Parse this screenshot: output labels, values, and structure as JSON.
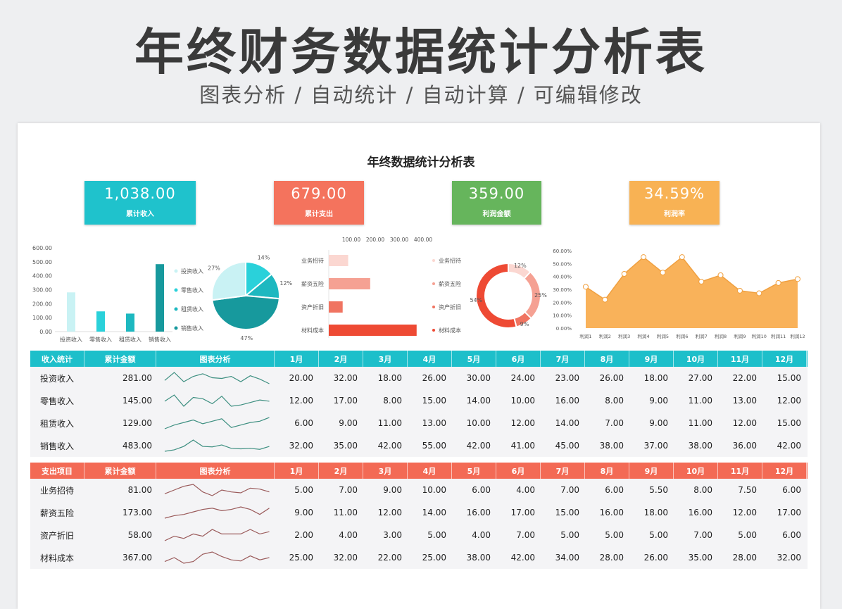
{
  "header": {
    "title": "年终财务数据统计分析表",
    "subtitle": "图表分析 / 自动统计 / 自动计算 / 可编辑修改"
  },
  "sheet_title": "年终数据统计分析表",
  "kpis": [
    {
      "value": "1,038.00",
      "label": "累计收入",
      "color": "#1fc2cc"
    },
    {
      "value": "679.00",
      "label": "累计支出",
      "color": "#f4735d"
    },
    {
      "value": "359.00",
      "label": "利润金额",
      "color": "#66b55c"
    },
    {
      "value": "34.59%",
      "label": "利润率",
      "color": "#f8b254"
    }
  ],
  "colors": {
    "income_header": "#1dbfca",
    "expense_header": "#f36a55",
    "line_spark_income": "#3d8f80",
    "line_spark_expense": "#9a5a5a"
  },
  "chart_data": [
    {
      "type": "bar",
      "categories": [
        "投资收入",
        "零售收入",
        "租赁收入",
        "销售收入"
      ],
      "values": [
        281,
        145,
        129,
        483
      ],
      "ylim": [
        0,
        600
      ],
      "yticks": [
        "0.00",
        "100.00",
        "200.00",
        "300.00",
        "400.00",
        "500.00",
        "600.00"
      ],
      "colors": [
        "#c9f2f4",
        "#2ad1da",
        "#1db8c0",
        "#17999d"
      ]
    },
    {
      "type": "pie",
      "categories": [
        "零售收入",
        "租赁收入",
        "销售收入",
        "投资收入"
      ],
      "values": [
        145,
        129,
        483,
        281
      ],
      "labels": [
        "14%",
        "12%",
        "47%",
        "27%"
      ],
      "colors": [
        "#2ad1da",
        "#1db8c0",
        "#17999d",
        "#c9f2f4"
      ],
      "legend": [
        "投资收入",
        "零售收入",
        "租赁收入",
        "销售收入"
      ],
      "legend_colors": [
        "#c9f2f4",
        "#2ad1da",
        "#1db8c0",
        "#17999d"
      ]
    },
    {
      "type": "bar",
      "orientation": "horizontal",
      "categories": [
        "业务招待",
        "薪资五险",
        "资产折旧",
        "材料成本"
      ],
      "values": [
        81,
        173,
        58,
        367
      ],
      "xticks": [
        "100.00",
        "200.00",
        "300.00",
        "400.00"
      ],
      "colors": [
        "#fbd7d1",
        "#f5a193",
        "#f07461",
        "#ee4a34"
      ]
    },
    {
      "type": "pie",
      "donut": true,
      "categories": [
        "业务招待",
        "薪资五险",
        "资产折旧",
        "材料成本"
      ],
      "values": [
        81,
        173,
        58,
        367
      ],
      "labels": [
        "12%",
        "25%",
        "9%",
        "54%"
      ],
      "colors": [
        "#fbd7d1",
        "#f5a193",
        "#f07461",
        "#ee4a34"
      ]
    },
    {
      "type": "area",
      "categories": [
        "利润1",
        "利润2",
        "利润3",
        "利润4",
        "利润5",
        "利润6",
        "利润7",
        "利润8",
        "利润9",
        "利润10",
        "利润11",
        "利润12"
      ],
      "values": [
        32,
        22,
        42,
        55,
        43,
        55,
        36,
        41,
        29,
        27,
        35,
        38
      ],
      "ylim": [
        0,
        60
      ],
      "yticks": [
        "0.00%",
        "10.00%",
        "20.00%",
        "30.00%",
        "40.00%",
        "50.00%",
        "60.00%"
      ],
      "color": "#f9b25a"
    }
  ],
  "income": {
    "headers": [
      "收入统计",
      "累计金额",
      "图表分析",
      "1月",
      "2月",
      "3月",
      "4月",
      "5月",
      "6月",
      "7月",
      "8月",
      "9月",
      "10月",
      "11月",
      "12月"
    ],
    "rows": [
      {
        "name": "投资收入",
        "total": "281.00",
        "months": [
          "20.00",
          "32.00",
          "18.00",
          "26.00",
          "30.00",
          "24.00",
          "23.00",
          "26.00",
          "18.00",
          "27.00",
          "22.00",
          "15.00"
        ]
      },
      {
        "name": "零售收入",
        "total": "145.00",
        "months": [
          "12.00",
          "17.00",
          "8.00",
          "15.00",
          "14.00",
          "10.00",
          "16.00",
          "8.00",
          "9.00",
          "11.00",
          "13.00",
          "12.00"
        ]
      },
      {
        "name": "租赁收入",
        "total": "129.00",
        "months": [
          "6.00",
          "9.00",
          "11.00",
          "13.00",
          "10.00",
          "12.00",
          "14.00",
          "7.00",
          "9.00",
          "11.00",
          "12.00",
          "15.00"
        ]
      },
      {
        "name": "销售收入",
        "total": "483.00",
        "months": [
          "32.00",
          "35.00",
          "42.00",
          "55.00",
          "42.00",
          "41.00",
          "45.00",
          "38.00",
          "37.00",
          "38.00",
          "36.00",
          "42.00"
        ]
      }
    ]
  },
  "expense": {
    "headers": [
      "支出项目",
      "累计金额",
      "图表分析",
      "1月",
      "2月",
      "3月",
      "4月",
      "5月",
      "6月",
      "7月",
      "8月",
      "9月",
      "10月",
      "11月",
      "12月"
    ],
    "rows": [
      {
        "name": "业务招待",
        "total": "81.00",
        "months": [
          "5.00",
          "7.00",
          "9.00",
          "10.00",
          "6.00",
          "4.00",
          "7.00",
          "6.00",
          "5.50",
          "8.00",
          "7.50",
          "6.00"
        ]
      },
      {
        "name": "薪资五险",
        "total": "173.00",
        "months": [
          "9.00",
          "11.00",
          "12.00",
          "14.00",
          "16.00",
          "17.00",
          "15.00",
          "16.00",
          "18.00",
          "16.00",
          "12.00",
          "17.00"
        ]
      },
      {
        "name": "资产折旧",
        "total": "58.00",
        "months": [
          "2.00",
          "4.00",
          "3.00",
          "5.00",
          "4.00",
          "7.00",
          "5.00",
          "5.00",
          "5.00",
          "7.00",
          "5.00",
          "6.00"
        ]
      },
      {
        "name": "材料成本",
        "total": "367.00",
        "months": [
          "25.00",
          "32.00",
          "22.00",
          "25.00",
          "38.00",
          "42.00",
          "34.00",
          "28.00",
          "26.00",
          "35.00",
          "28.00",
          "32.00"
        ]
      }
    ]
  }
}
